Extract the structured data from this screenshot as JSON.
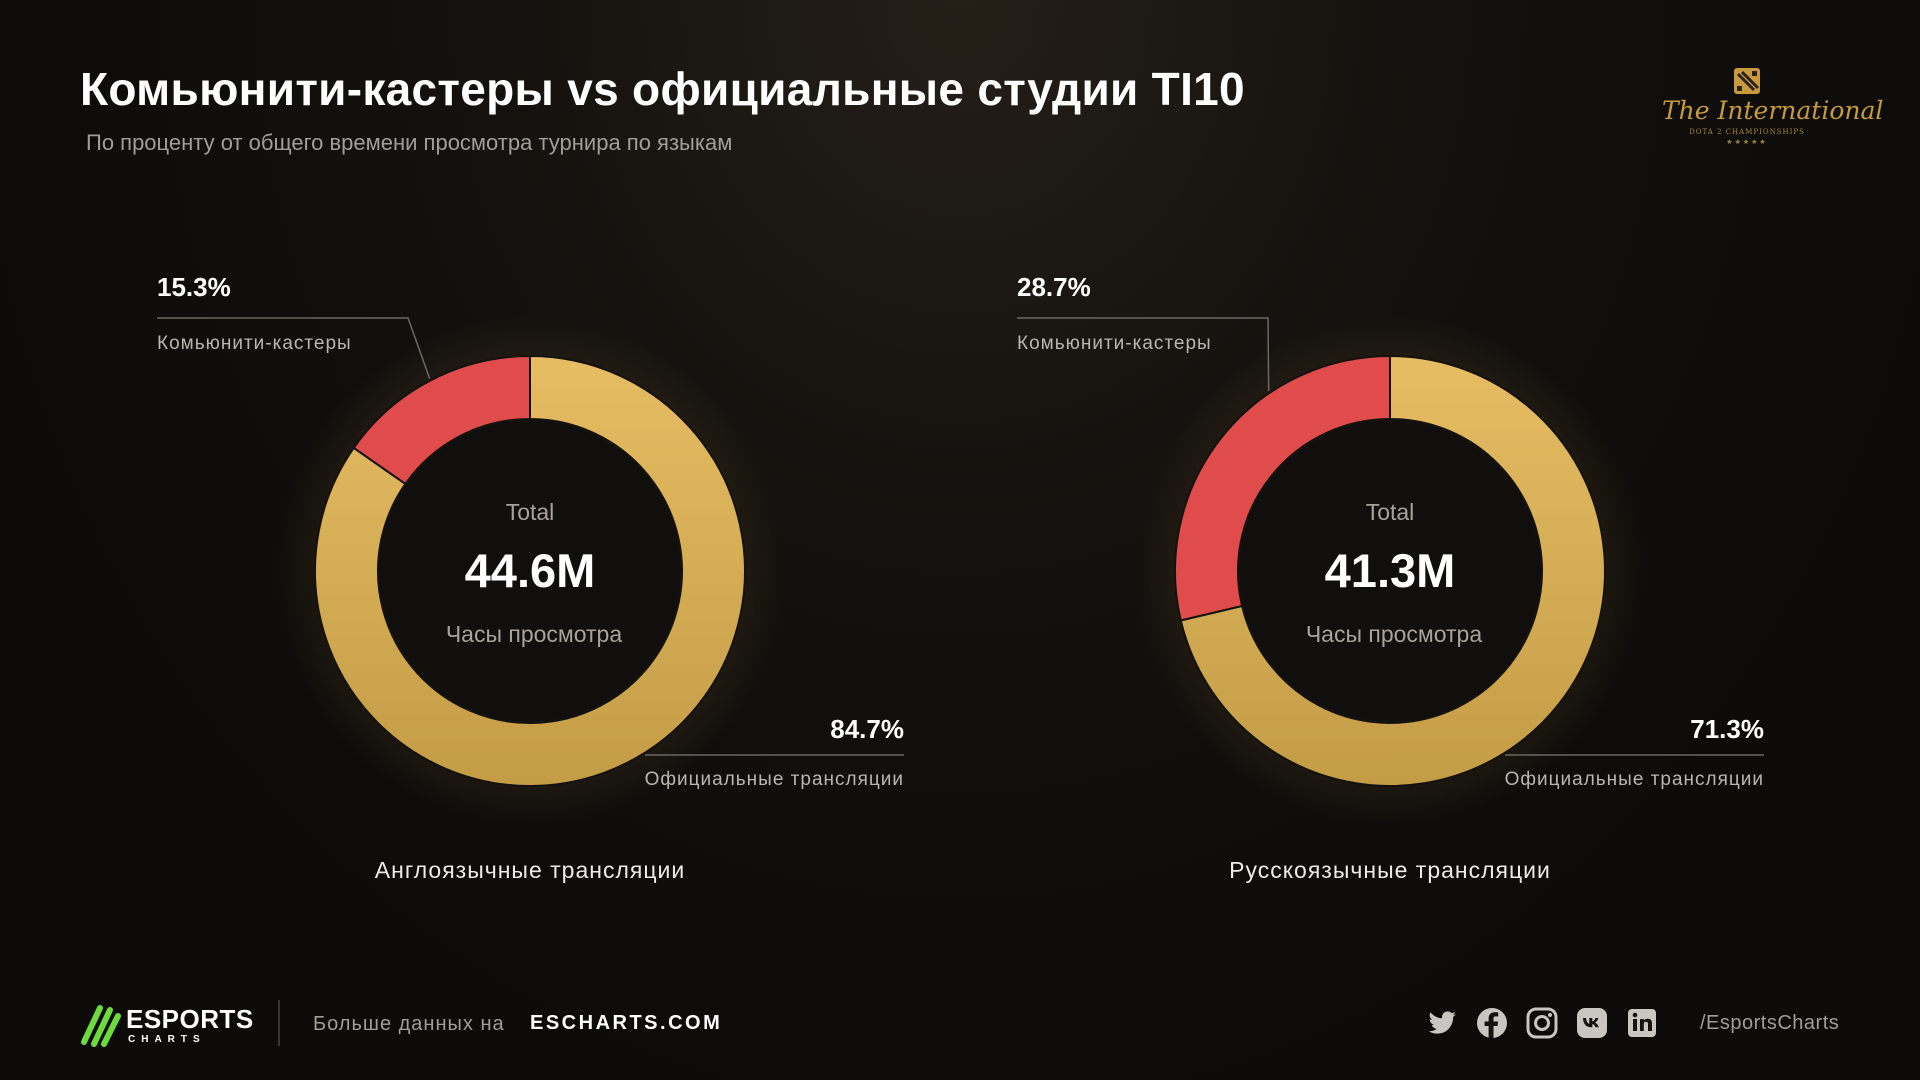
{
  "header": {
    "title": "Комьюнити-кастеры vs официальные студии TI10",
    "subtitle": "По проценту от общего времени просмотра турнира по языкам"
  },
  "logo": {
    "name": "The International",
    "sub": "DOTA 2 CHAMPIONSHIPS",
    "stars": "★★★★★"
  },
  "colors": {
    "community": "#e04c4c",
    "official": "#e3b75f",
    "official_dark": "#c29a45"
  },
  "chart_data": [
    {
      "type": "pie",
      "caption": "Англоязычные трансляции",
      "center_top": "Total",
      "center_value": "44.6M",
      "center_bottom": "Часы просмотра",
      "slices": [
        {
          "label": "Комьюнити-кастеры",
          "value": 15.3,
          "value_label": "15.3%"
        },
        {
          "label": "Официальные трансляции",
          "value": 84.7,
          "value_label": "84.7%"
        }
      ]
    },
    {
      "type": "pie",
      "caption": "Русскоязычные трансляции",
      "center_top": "Total",
      "center_value": "41.3M",
      "center_bottom": "Часы просмотра",
      "slices": [
        {
          "label": "Комьюнити-кастеры",
          "value": 28.7,
          "value_label": "28.7%"
        },
        {
          "label": "Официальные трансляции",
          "value": 71.3,
          "value_label": "71.3%"
        }
      ]
    }
  ],
  "footer": {
    "brand": "ESPORTS",
    "brand_sub": "CHARTS",
    "more_label": "Больше данных на",
    "site": "ESCHARTS.COM",
    "social_icons": [
      "twitter-icon",
      "facebook-icon",
      "instagram-icon",
      "vk-icon",
      "linkedin-icon"
    ],
    "handle": "/EsportsCharts"
  }
}
